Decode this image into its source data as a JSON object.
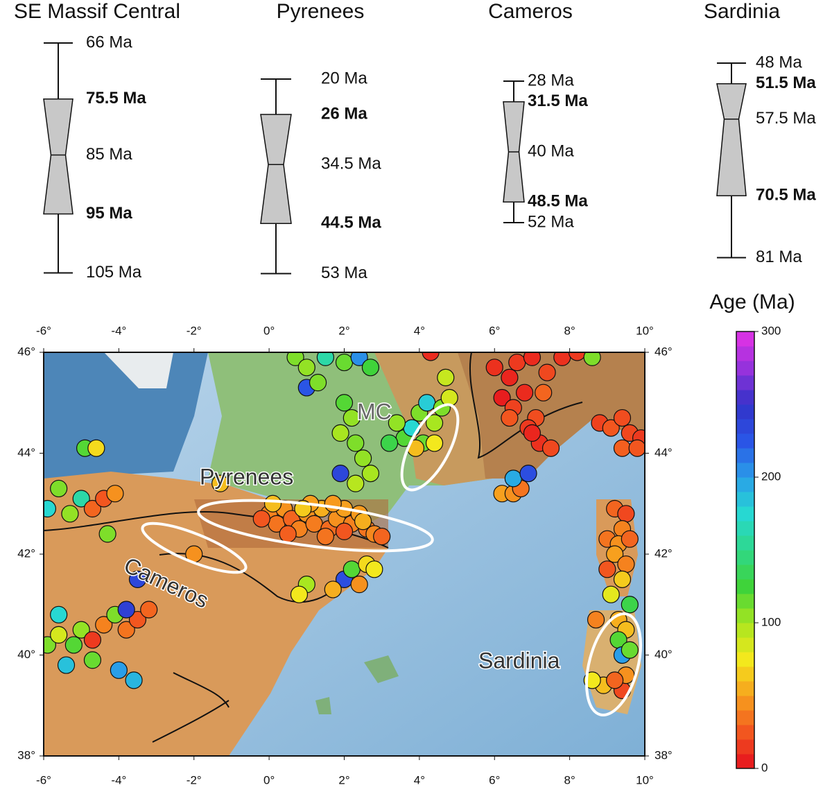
{
  "chart_data": [
    {
      "type": "box",
      "categories": [
        "SE Massif Central",
        "Pyrenees",
        "Cameros",
        "Sardinia"
      ],
      "values": [
        [
          66,
          75.5,
          85,
          95,
          105
        ],
        [
          20,
          26,
          34.5,
          44.5,
          53
        ],
        [
          28,
          31.5,
          40,
          48.5,
          52
        ],
        [
          48,
          51.5,
          57.5,
          70.5,
          81
        ]
      ],
      "value_labels": [
        [
          "66 Ma",
          "75.5 Ma",
          "85 Ma",
          "95 Ma",
          "105 Ma"
        ],
        [
          "20 Ma",
          "26 Ma",
          "34.5 Ma",
          "44.5 Ma",
          "53 Ma"
        ],
        [
          "28 Ma",
          "31.5 Ma",
          "40 Ma",
          "48.5 Ma",
          "52 Ma"
        ],
        [
          "48 Ma",
          "51.5 Ma",
          "57.5 Ma",
          "70.5 Ma",
          "81 Ma"
        ]
      ],
      "color": "#c8c8c8"
    },
    {
      "type": "scatter",
      "xlim": [
        -6,
        10
      ],
      "ylim": [
        38,
        46
      ],
      "xticks": [
        {
          "value": -6,
          "label": "-6°"
        },
        {
          "value": -4,
          "label": "-4°"
        },
        {
          "value": -2,
          "label": "-2°"
        },
        {
          "value": 0,
          "label": "0°"
        },
        {
          "value": 2,
          "label": "2°"
        },
        {
          "value": 4,
          "label": "4°"
        },
        {
          "value": 6,
          "label": "6°"
        },
        {
          "value": 8,
          "label": "8°"
        },
        {
          "value": 10,
          "label": "10°"
        }
      ],
      "yticks": [
        {
          "value": 38,
          "label": "38°"
        },
        {
          "value": 40,
          "label": "40°"
        },
        {
          "value": 42,
          "label": "42°"
        },
        {
          "value": 44,
          "label": "44°"
        },
        {
          "value": 46,
          "label": "46°"
        }
      ],
      "annotations": [
        "MC",
        "Pyrenees",
        "Cameros",
        "Sardinia"
      ],
      "colorbar_label": "Age (Ma)",
      "clim": [
        0,
        300
      ],
      "cticks": [
        0,
        100,
        200,
        300
      ],
      "colormap": [
        "#e60f1e",
        "#f2561f",
        "#f7a01e",
        "#f3e81d",
        "#a8e620",
        "#3fd33a",
        "#2fd88a",
        "#27d8d2",
        "#2a9ee8",
        "#2a55e6",
        "#3232c8",
        "#9632dc",
        "#e632e6"
      ],
      "x": [
        0,
        0.2,
        0.4,
        0.6,
        0.8,
        1.0,
        1.2,
        1.4,
        1.6,
        1.8,
        2.0,
        2.2,
        2.4,
        2.6,
        2.8,
        3.0,
        0.1,
        -0.2,
        0.5,
        1.1,
        1.5,
        2.0,
        2.5,
        1.7,
        0.9,
        1.0,
        0.8,
        2.0,
        2.2,
        2.6,
        2.8,
        2.4,
        1.7,
        0.7,
        1.0,
        1.5,
        2.0,
        2.4,
        2.7,
        1.0,
        1.3,
        2.0,
        2.2,
        1.9,
        2.3,
        2.5,
        2.7,
        2.3,
        1.9,
        3.6,
        3.8,
        4.0,
        4.2,
        4.4,
        4.6,
        4.8,
        4.1,
        4.4,
        3.4,
        4.7,
        3.9,
        3.2,
        4.3,
        6.0,
        6.4,
        6.6,
        7.0,
        7.4,
        7.8,
        8.2,
        8.6,
        6.2,
        6.5,
        6.8,
        7.1,
        6.9,
        7.2,
        7.5,
        7.0,
        6.4,
        7.3,
        8.8,
        9.1,
        9.4,
        9.6,
        9.9,
        9.4,
        9.8,
        6.2,
        6.5,
        6.7,
        6.5,
        6.9,
        9.2,
        9.5,
        9.4,
        9.0,
        9.3,
        9.6,
        9.2,
        9.5,
        9.0,
        9.4,
        9.1,
        9.6,
        9.3,
        8.7,
        9.5,
        9.3,
        9.4,
        9.6,
        8.9,
        9.4,
        8.6,
        9.5,
        9.2,
        -5.9,
        -5.6,
        -5.2,
        -5.0,
        -4.7,
        -4.4,
        -4.1,
        -3.8,
        -3.5,
        -3.2,
        -5.4,
        -4.7,
        -4.0,
        -3.6,
        -3.8,
        -5.6,
        -5.9,
        -5.6,
        -5.3,
        -5.0,
        -4.7,
        -4.4,
        -4.1,
        -4.3,
        -4.9,
        -4.6,
        -1.3,
        -2.0,
        -3.5
      ],
      "y": [
        42.8,
        42.6,
        42.9,
        42.7,
        42.5,
        42.8,
        42.6,
        42.9,
        42.5,
        42.7,
        42.9,
        42.6,
        42.8,
        42.5,
        42.4,
        42.35,
        43.0,
        42.7,
        42.4,
        43.0,
        42.35,
        42.45,
        42.65,
        43.0,
        42.9,
        41.4,
        41.2,
        41.5,
        41.7,
        41.8,
        41.7,
        41.4,
        41.3,
        45.9,
        45.7,
        45.9,
        45.8,
        45.9,
        45.7,
        45.3,
        45.4,
        45.0,
        44.7,
        44.4,
        44.2,
        43.9,
        43.6,
        43.4,
        43.6,
        44.3,
        44.5,
        44.8,
        45.0,
        44.6,
        44.9,
        45.1,
        44.2,
        44.2,
        44.6,
        45.5,
        44.1,
        44.2,
        46.0,
        45.7,
        45.5,
        45.8,
        45.9,
        45.6,
        45.9,
        46.0,
        45.9,
        45.1,
        44.9,
        45.2,
        44.7,
        44.5,
        44.2,
        44.1,
        44.4,
        44.7,
        45.2,
        44.6,
        44.5,
        44.7,
        44.4,
        44.3,
        44.1,
        44.1,
        43.2,
        43.2,
        43.3,
        43.5,
        43.6,
        42.9,
        42.8,
        42.5,
        42.3,
        42.2,
        42.3,
        42.0,
        41.8,
        41.7,
        41.5,
        41.2,
        41.0,
        40.7,
        40.7,
        40.5,
        40.3,
        40.0,
        40.1,
        39.4,
        39.3,
        39.5,
        39.6,
        39.5,
        40.2,
        40.4,
        40.2,
        40.5,
        40.3,
        40.6,
        40.8,
        40.5,
        40.7,
        40.9,
        39.8,
        39.9,
        39.7,
        39.5,
        40.9,
        40.8,
        42.9,
        43.3,
        42.8,
        43.1,
        42.9,
        43.1,
        43.2,
        42.4,
        44.1,
        44.1,
        43.4,
        42.0,
        41.5
      ],
      "age": [
        40,
        35,
        45,
        30,
        40,
        45,
        38,
        55,
        32,
        45,
        50,
        40,
        48,
        35,
        42,
        30,
        60,
        25,
        28,
        50,
        35,
        25,
        55,
        48,
        65,
        100,
        75,
        230,
        120,
        70,
        75,
        45,
        55,
        110,
        105,
        160,
        115,
        205,
        125,
        225,
        110,
        120,
        105,
        100,
        110,
        105,
        100,
        95,
        235,
        120,
        175,
        110,
        180,
        100,
        110,
        85,
        115,
        75,
        105,
        90,
        60,
        130,
        10,
        12,
        8,
        15,
        10,
        20,
        12,
        15,
        110,
        5,
        18,
        10,
        22,
        15,
        12,
        20,
        8,
        25,
        30,
        18,
        25,
        22,
        20,
        15,
        28,
        25,
        50,
        45,
        35,
        195,
        230,
        30,
        20,
        40,
        35,
        45,
        30,
        50,
        40,
        25,
        65,
        80,
        130,
        55,
        40,
        60,
        120,
        200,
        115,
        60,
        20,
        75,
        45,
        30,
        110,
        85,
        120,
        105,
        15,
        40,
        110,
        35,
        25,
        30,
        185,
        115,
        200,
        190,
        240,
        175,
        175,
        110,
        105,
        160,
        30,
        25,
        45,
        110,
        120,
        70,
        60,
        45,
        235
      ]
    }
  ]
}
